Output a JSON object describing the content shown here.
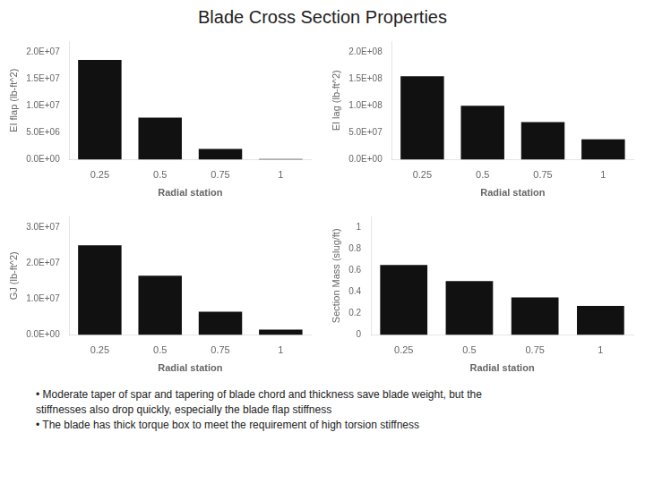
{
  "title": "Blade Cross Section Properties",
  "annotations": [
    "• Moderate taper of spar and tapering of blade chord and thickness save blade weight, but the",
    "stiffnesses also drop quickly, especially the blade flap stiffness",
    "• The blade has thick torque box to meet the requirement of high torsion stiffness"
  ],
  "chart_data": [
    {
      "type": "bar",
      "categories": [
        "0.25",
        "0.5",
        "0.75",
        "1"
      ],
      "values": [
        18500000.0,
        7800000.0,
        2000000.0,
        150000.0
      ],
      "color": "#111111",
      "xlabel": "Radial station",
      "ylabel": "EI flap (lb-ft^2)",
      "ylim": [
        0,
        22000000.0
      ],
      "yticks": [
        {
          "value": 0.0,
          "label": "0.0E+00"
        },
        {
          "value": 5000000.0,
          "label": "5.0E+06"
        },
        {
          "value": 10000000.0,
          "label": "1.0E+07"
        },
        {
          "value": 15000000.0,
          "label": "1.5E+07"
        },
        {
          "value": 20000000.0,
          "label": "2.0E+07"
        }
      ],
      "grid": false
    },
    {
      "type": "bar",
      "categories": [
        "0.25",
        "0.5",
        "0.75",
        "1"
      ],
      "values": [
        155000000.0,
        100000000.0,
        70000000.0,
        38000000.0
      ],
      "color": "#111111",
      "xlabel": "Radial station",
      "ylabel": "EI lag (lb-ft^2)",
      "ylim": [
        0,
        220000000.0
      ],
      "yticks": [
        {
          "value": 0.0,
          "label": "0.0E+00"
        },
        {
          "value": 50000000.0,
          "label": "5.0E+07"
        },
        {
          "value": 100000000.0,
          "label": "1.0E+08"
        },
        {
          "value": 150000000.0,
          "label": "1.5E+08"
        },
        {
          "value": 200000000.0,
          "label": "2.0E+08"
        }
      ],
      "grid": false
    },
    {
      "type": "bar",
      "categories": [
        "0.25",
        "0.5",
        "0.75",
        "1"
      ],
      "values": [
        25000000.0,
        16500000.0,
        6500000.0,
        1500000.0
      ],
      "color": "#111111",
      "xlabel": "Radial station",
      "ylabel": "GJ (lb-ft^2)",
      "ylim": [
        0,
        33000000.0
      ],
      "yticks": [
        {
          "value": 0.0,
          "label": "0.0E+00"
        },
        {
          "value": 10000000.0,
          "label": "1.0E+07"
        },
        {
          "value": 20000000.0,
          "label": "2.0E+07"
        },
        {
          "value": 30000000.0,
          "label": "3.0E+07"
        }
      ],
      "grid": false
    },
    {
      "type": "bar",
      "categories": [
        "0.25",
        "0.5",
        "0.75",
        "1"
      ],
      "values": [
        0.65,
        0.5,
        0.35,
        0.27
      ],
      "color": "#111111",
      "xlabel": "Radial station",
      "ylabel": "Section Mass (slug/ft)",
      "ylim": [
        0,
        1.1
      ],
      "yticks": [
        0,
        0.2,
        0.4,
        0.6,
        0.8,
        1
      ],
      "grid": false
    }
  ]
}
